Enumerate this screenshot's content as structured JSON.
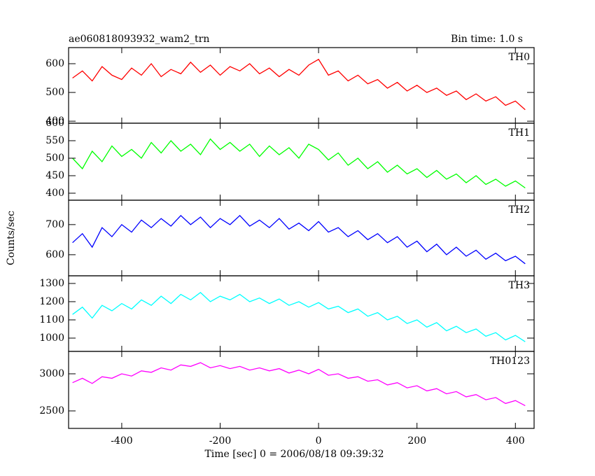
{
  "chart_data": [
    {
      "type": "line",
      "title": "ae060818093932_wam2_trn",
      "subtitle": "Bin time: 1.0 s",
      "ylabel": "Counts/sec",
      "label": "TH0",
      "color": "#ff0000",
      "x": [
        -500,
        -480,
        -460,
        -440,
        -420,
        -400,
        -380,
        -360,
        -340,
        -320,
        -300,
        -280,
        -260,
        -240,
        -220,
        -200,
        -180,
        -160,
        -140,
        -120,
        -100,
        -80,
        -60,
        -40,
        -20,
        0,
        20,
        40,
        60,
        80,
        100,
        120,
        140,
        160,
        180,
        200,
        220,
        240,
        260,
        280,
        300,
        320,
        340,
        360,
        380,
        400,
        420
      ],
      "values": [
        550,
        575,
        540,
        590,
        560,
        545,
        585,
        560,
        600,
        555,
        580,
        565,
        605,
        570,
        595,
        560,
        590,
        575,
        600,
        565,
        585,
        555,
        580,
        560,
        595,
        615,
        560,
        575,
        540,
        560,
        530,
        545,
        515,
        535,
        505,
        525,
        500,
        515,
        490,
        505,
        475,
        495,
        470,
        485,
        455,
        470,
        440
      ],
      "xlim": [
        -508,
        438
      ],
      "xticks": [
        -400,
        -200,
        0,
        200,
        400
      ],
      "ylim": [
        393,
        656
      ],
      "yticks": [
        400,
        500,
        600
      ]
    },
    {
      "type": "line",
      "label": "TH1",
      "color": "#00ff00",
      "x": [
        -500,
        -480,
        -460,
        -440,
        -420,
        -400,
        -380,
        -360,
        -340,
        -320,
        -300,
        -280,
        -260,
        -240,
        -220,
        -200,
        -180,
        -160,
        -140,
        -120,
        -100,
        -80,
        -60,
        -40,
        -20,
        0,
        20,
        40,
        60,
        80,
        100,
        120,
        140,
        160,
        180,
        200,
        220,
        240,
        260,
        280,
        300,
        320,
        340,
        360,
        380,
        400,
        420
      ],
      "values": [
        500,
        470,
        520,
        490,
        535,
        505,
        525,
        500,
        545,
        515,
        550,
        520,
        540,
        510,
        555,
        525,
        545,
        520,
        540,
        505,
        535,
        510,
        530,
        500,
        540,
        525,
        495,
        515,
        480,
        500,
        470,
        490,
        460,
        480,
        455,
        470,
        445,
        465,
        440,
        455,
        430,
        450,
        425,
        440,
        420,
        435,
        415
      ],
      "xlim": [
        -508,
        438
      ],
      "xticks": [
        -400,
        -200,
        0,
        200,
        400
      ],
      "ylim": [
        380,
        600
      ],
      "yticks": [
        400,
        450,
        500,
        550,
        600
      ]
    },
    {
      "type": "line",
      "label": "TH2",
      "color": "#0000ff",
      "x": [
        -500,
        -480,
        -460,
        -440,
        -420,
        -400,
        -380,
        -360,
        -340,
        -320,
        -300,
        -280,
        -260,
        -240,
        -220,
        -200,
        -180,
        -160,
        -140,
        -120,
        -100,
        -80,
        -60,
        -40,
        -20,
        0,
        20,
        40,
        60,
        80,
        100,
        120,
        140,
        160,
        180,
        200,
        220,
        240,
        260,
        280,
        300,
        320,
        340,
        360,
        380,
        400,
        420
      ],
      "values": [
        640,
        670,
        625,
        690,
        660,
        700,
        675,
        715,
        690,
        720,
        695,
        730,
        700,
        725,
        690,
        720,
        700,
        730,
        695,
        715,
        690,
        720,
        685,
        705,
        680,
        710,
        675,
        690,
        660,
        680,
        650,
        670,
        640,
        660,
        625,
        645,
        610,
        635,
        600,
        625,
        595,
        615,
        585,
        605,
        580,
        595,
        570
      ],
      "xlim": [
        -508,
        438
      ],
      "xticks": [
        -400,
        -200,
        0,
        200,
        400
      ],
      "ylim": [
        530,
        781
      ],
      "yticks": [
        600,
        700
      ]
    },
    {
      "type": "line",
      "label": "TH3",
      "color": "#00ffff",
      "x": [
        -500,
        -480,
        -460,
        -440,
        -420,
        -400,
        -380,
        -360,
        -340,
        -320,
        -300,
        -280,
        -260,
        -240,
        -220,
        -200,
        -180,
        -160,
        -140,
        -120,
        -100,
        -80,
        -60,
        -40,
        -20,
        0,
        20,
        40,
        60,
        80,
        100,
        120,
        140,
        160,
        180,
        200,
        220,
        240,
        260,
        280,
        300,
        320,
        340,
        360,
        380,
        400,
        420
      ],
      "values": [
        1130,
        1170,
        1110,
        1180,
        1150,
        1190,
        1160,
        1210,
        1180,
        1230,
        1190,
        1240,
        1210,
        1250,
        1200,
        1230,
        1210,
        1240,
        1200,
        1220,
        1190,
        1215,
        1180,
        1200,
        1170,
        1195,
        1160,
        1175,
        1140,
        1160,
        1120,
        1140,
        1100,
        1120,
        1080,
        1100,
        1060,
        1085,
        1040,
        1065,
        1030,
        1050,
        1010,
        1030,
        990,
        1015,
        980
      ],
      "xlim": [
        -508,
        438
      ],
      "xticks": [
        -400,
        -200,
        0,
        200,
        400
      ],
      "ylim": [
        927,
        1342
      ],
      "yticks": [
        1000,
        1100,
        1200,
        1300
      ]
    },
    {
      "type": "line",
      "label": "TH0123",
      "color": "#ff00ff",
      "xlabel": "Time [sec] 0 = 2006/08/18 09:39:32",
      "x": [
        -500,
        -480,
        -460,
        -440,
        -420,
        -400,
        -380,
        -360,
        -340,
        -320,
        -300,
        -280,
        -260,
        -240,
        -220,
        -200,
        -180,
        -160,
        -140,
        -120,
        -100,
        -80,
        -60,
        -40,
        -20,
        0,
        20,
        40,
        60,
        80,
        100,
        120,
        140,
        160,
        180,
        200,
        220,
        240,
        260,
        280,
        300,
        320,
        340,
        360,
        380,
        400,
        420
      ],
      "values": [
        2880,
        2940,
        2870,
        2960,
        2940,
        3000,
        2970,
        3040,
        3020,
        3080,
        3050,
        3120,
        3100,
        3150,
        3080,
        3110,
        3070,
        3100,
        3050,
        3080,
        3040,
        3070,
        3010,
        3050,
        3000,
        3060,
        2980,
        3000,
        2940,
        2960,
        2900,
        2920,
        2850,
        2880,
        2810,
        2840,
        2770,
        2800,
        2730,
        2760,
        2690,
        2720,
        2650,
        2680,
        2600,
        2640,
        2570
      ],
      "xlim": [
        -508,
        438
      ],
      "xticks": [
        -400,
        -200,
        0,
        200,
        400
      ],
      "ylim": [
        2264,
        3302
      ],
      "yticks": [
        2500,
        3000
      ]
    }
  ]
}
